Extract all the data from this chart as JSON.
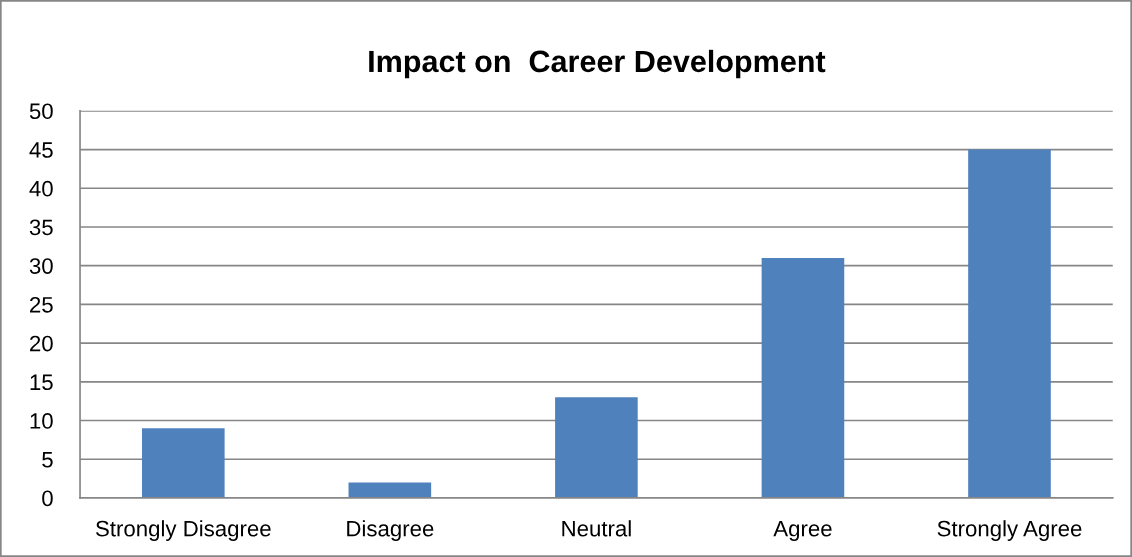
{
  "chart_data": {
    "type": "bar",
    "title": "Impact on  Career Development",
    "categories": [
      "Strongly Disagree",
      "Disagree",
      "Neutral",
      "Agree",
      "Strongly Agree"
    ],
    "values": [
      9,
      2,
      13,
      31,
      45
    ],
    "color": "#4f81bd",
    "ylim": [
      0,
      50
    ],
    "yticks": [
      0,
      5,
      10,
      15,
      20,
      25,
      30,
      35,
      40,
      45,
      50
    ],
    "grid": "y"
  }
}
